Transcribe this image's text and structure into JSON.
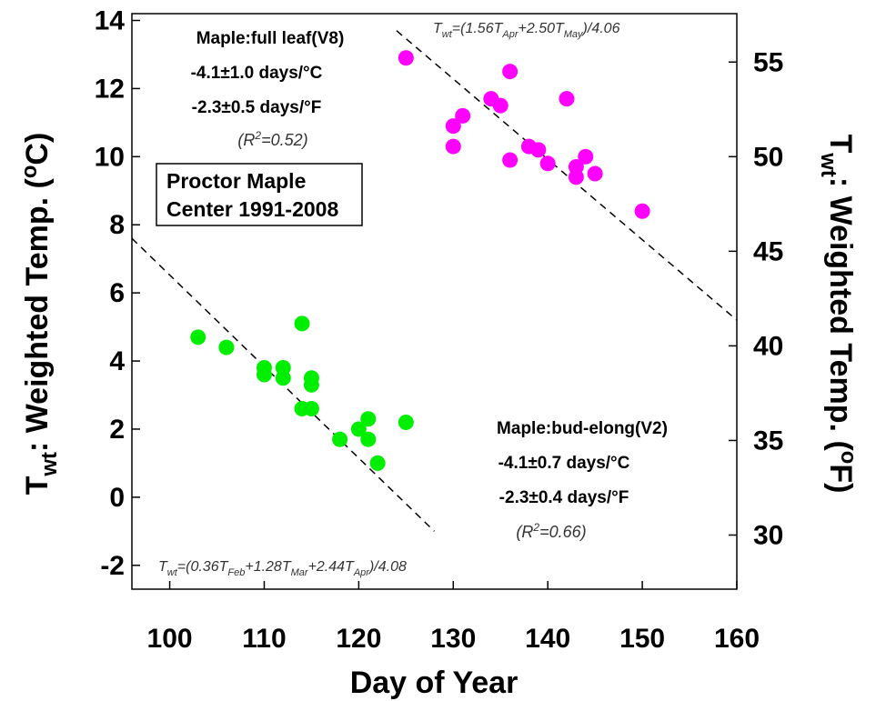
{
  "chart_data": {
    "type": "scatter",
    "title": "",
    "xlabel": "Day of Year",
    "ylabel_left": {
      "main": "T",
      "sub": "wt",
      "rest": ": Weighted Temp. (",
      "deg": "o",
      "unit": "C)"
    },
    "ylabel_right": {
      "main": "T",
      "sub": "wt",
      "rest": ": Weighted Temp. (",
      "deg": "o",
      "unit": "F)"
    },
    "xlim": [
      96,
      160
    ],
    "ylim": [
      -2.7,
      14.2
    ],
    "x_ticks": [
      100,
      110,
      120,
      130,
      140,
      150,
      160
    ],
    "y_ticks_left": [
      -2,
      0,
      2,
      4,
      6,
      8,
      10,
      12,
      14
    ],
    "y_ticks_right": [
      30,
      35,
      40,
      45,
      50,
      55
    ],
    "station_label": [
      "Proctor Maple",
      "Center 1991-2008"
    ],
    "series": [
      {
        "name": "Maple:full leaf(V8)",
        "color": "#ff00ff",
        "stats": [
          "-4.1±1.0 days/°C",
          "-2.3±0.5 days/°F"
        ],
        "r2": "=0.52",
        "points": [
          [
            125,
            12.9
          ],
          [
            130,
            10.3
          ],
          [
            130,
            10.9
          ],
          [
            131,
            11.2
          ],
          [
            134,
            11.7
          ],
          [
            135,
            11.5
          ],
          [
            136,
            12.5
          ],
          [
            136,
            9.9
          ],
          [
            138,
            10.3
          ],
          [
            139,
            10.2
          ],
          [
            140,
            9.8
          ],
          [
            142,
            11.7
          ],
          [
            143,
            9.7
          ],
          [
            143,
            9.4
          ],
          [
            144,
            10.0
          ],
          [
            145,
            9.5
          ],
          [
            150,
            8.4
          ]
        ],
        "regression": {
          "x": [
            124,
            160
          ],
          "y": [
            13.7,
            5.2
          ]
        },
        "equation": {
          "lead": "T",
          "lead_sub": "wt",
          "body": "=(1.56T",
          "s1": "Apr",
          "mid": "+2.50T",
          "s2": "May",
          "tail": ")/4.06"
        }
      },
      {
        "name": "Maple:bud-elong(V2)",
        "color": "#00ee00",
        "stats": [
          "-4.1±0.7 days/°C",
          "-2.3±0.4 days/°F"
        ],
        "r2": "=0.66",
        "points": [
          [
            103,
            4.7
          ],
          [
            106,
            4.4
          ],
          [
            110,
            3.8
          ],
          [
            110,
            3.6
          ],
          [
            112,
            3.8
          ],
          [
            112,
            3.5
          ],
          [
            114,
            5.1
          ],
          [
            114,
            2.6
          ],
          [
            115,
            3.5
          ],
          [
            115,
            3.3
          ],
          [
            115,
            2.6
          ],
          [
            118,
            1.7
          ],
          [
            120,
            2.0
          ],
          [
            121,
            2.3
          ],
          [
            121,
            1.7
          ],
          [
            122,
            1.0
          ],
          [
            125,
            2.2
          ]
        ],
        "regression": {
          "x": [
            96,
            128
          ],
          "y": [
            7.6,
            -1.0
          ]
        },
        "equation": {
          "lead": "T",
          "lead_sub": "wt",
          "body": "=(0.36T",
          "s1": "Feb",
          "mid": "+1.28T",
          "s2": "Mar",
          "mid2": "+2.44T",
          "s3": "Apr",
          "tail": ")/4.08"
        }
      }
    ]
  }
}
